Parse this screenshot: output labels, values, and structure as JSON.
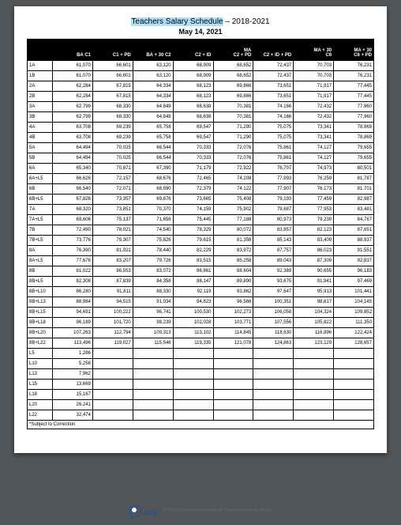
{
  "page_title_highlight": "Teachers Salary Schedule",
  "page_title_rest": " – 2018-2021",
  "effective_date": "May 14, 2021",
  "headers": [
    "",
    "BA C1",
    "C1 + PD",
    "BA + 30 C2",
    "C2 + ID",
    "MA\nC2 + PD",
    "C2 + ID + PD",
    "MA + 30\nC6",
    "MA + 30\nC6 + PD"
  ],
  "rows": [
    {
      "step": "1A",
      "v": [
        "61,070",
        "66,601",
        "63,120",
        "68,909",
        "68,652",
        "72,437",
        "70,703",
        "76,231"
      ]
    },
    {
      "step": "1B",
      "v": [
        "61,070",
        "66,601",
        "63,120",
        "68,909",
        "68,652",
        "72,437",
        "70,703",
        "76,231"
      ]
    },
    {
      "step": "2A",
      "v": [
        "62,284",
        "67,815",
        "64,334",
        "68,123",
        "69,866",
        "73,651",
        "71,917",
        "77,445"
      ]
    },
    {
      "step": "2B",
      "v": [
        "62,284",
        "67,815",
        "64,334",
        "68,123",
        "69,866",
        "73,651",
        "71,917",
        "77,445"
      ]
    },
    {
      "step": "3A",
      "v": [
        "62,799",
        "68,330",
        "64,849",
        "68,638",
        "70,381",
        "74,166",
        "72,432",
        "77,960"
      ]
    },
    {
      "step": "3B",
      "v": [
        "62,799",
        "68,330",
        "64,849",
        "68,638",
        "70,381",
        "74,166",
        "72,432",
        "77,960"
      ]
    },
    {
      "step": "4A",
      "v": [
        "63,708",
        "69,239",
        "65,758",
        "69,547",
        "71,290",
        "75,075",
        "73,341",
        "78,869"
      ]
    },
    {
      "step": "4B",
      "v": [
        "63,708",
        "69,239",
        "65,758",
        "69,547",
        "71,290",
        "75,075",
        "73,341",
        "78,869"
      ]
    },
    {
      "step": "5A",
      "v": [
        "64,494",
        "70,025",
        "66,544",
        "70,333",
        "72,076",
        "75,861",
        "74,127",
        "79,655"
      ]
    },
    {
      "step": "5B",
      "v": [
        "64,494",
        "70,025",
        "66,544",
        "70,333",
        "72,076",
        "75,861",
        "74,127",
        "79,655"
      ]
    },
    {
      "step": "6A",
      "v": [
        "65,340",
        "70,871",
        "67,390",
        "71,179",
        "72,922",
        "76,707",
        "74,973",
        "80,501"
      ]
    },
    {
      "step": "6A+L5",
      "v": [
        "66,626",
        "72,157",
        "68,676",
        "72,465",
        "74,208",
        "77,993",
        "76,259",
        "81,787"
      ]
    },
    {
      "step": "6B",
      "v": [
        "66,540",
        "72,071",
        "68,590",
        "72,379",
        "74,122",
        "77,907",
        "76,173",
        "81,701"
      ]
    },
    {
      "step": "6B+L5",
      "v": [
        "67,826",
        "73,357",
        "69,876",
        "73,665",
        "75,408",
        "79,193",
        "77,459",
        "82,987"
      ]
    },
    {
      "step": "7A",
      "v": [
        "68,320",
        "73,851",
        "70,370",
        "74,159",
        "75,902",
        "79,687",
        "77,953",
        "83,481"
      ]
    },
    {
      "step": "7A+L5",
      "v": [
        "69,606",
        "75,137",
        "71,656",
        "75,445",
        "77,188",
        "80,973",
        "79,239",
        "84,767"
      ]
    },
    {
      "step": "7B",
      "v": [
        "72,490",
        "78,021",
        "74,540",
        "78,329",
        "80,072",
        "83,857",
        "82,123",
        "87,651"
      ]
    },
    {
      "step": "7B+L5",
      "v": [
        "73,776",
        "79,307",
        "75,826",
        "79,615",
        "81,358",
        "85,143",
        "83,409",
        "88,937"
      ]
    },
    {
      "step": "8A",
      "v": [
        "76,390",
        "81,921",
        "78,440",
        "82,229",
        "83,972",
        "87,757",
        "86,023",
        "91,551"
      ]
    },
    {
      "step": "8A+L5",
      "v": [
        "77,676",
        "83,207",
        "79,726",
        "83,515",
        "85,258",
        "89,043",
        "87,309",
        "92,837"
      ]
    },
    {
      "step": "8B",
      "v": [
        "81,022",
        "86,553",
        "83,072",
        "86,861",
        "88,604",
        "92,389",
        "90,655",
        "96,183"
      ]
    },
    {
      "step": "8B+L5",
      "v": [
        "82,308",
        "87,839",
        "84,358",
        "88,147",
        "89,890",
        "93,675",
        "91,941",
        "97,469"
      ]
    },
    {
      "step": "8B+L10",
      "v": [
        "86,280",
        "91,811",
        "88,330",
        "92,119",
        "93,862",
        "97,647",
        "95,913",
        "101,441"
      ]
    },
    {
      "step": "8B+L13",
      "v": [
        "88,984",
        "94,515",
        "91,034",
        "94,823",
        "96,566",
        "100,351",
        "98,617",
        "104,145"
      ]
    },
    {
      "step": "8B+L15",
      "v": [
        "94,691",
        "100,222",
        "96,741",
        "100,530",
        "102,273",
        "106,058",
        "104,324",
        "109,852"
      ]
    },
    {
      "step": "8B+L18",
      "v": [
        "96,189",
        "101,720",
        "98,239",
        "102,028",
        "103,771",
        "107,556",
        "105,822",
        "111,350"
      ]
    },
    {
      "step": "8B+L20",
      "v": [
        "107,263",
        "112,794",
        "109,313",
        "113,102",
        "114,845",
        "118,630",
        "116,896",
        "122,424"
      ]
    },
    {
      "step": "8B+L22",
      "v": [
        "113,496",
        "119,027",
        "115,546",
        "119,335",
        "121,078",
        "124,863",
        "123,129",
        "128,657"
      ]
    },
    {
      "step": "L5",
      "v": [
        "1,286",
        "",
        "",
        "",
        "",
        "",
        "",
        ""
      ]
    },
    {
      "step": "L10",
      "v": [
        "5,258",
        "",
        "",
        "",
        "",
        "",
        "",
        ""
      ]
    },
    {
      "step": "L13",
      "v": [
        "7,962",
        "",
        "",
        "",
        "",
        "",
        "",
        ""
      ]
    },
    {
      "step": "L15",
      "v": [
        "13,669",
        "",
        "",
        "",
        "",
        "",
        "",
        ""
      ]
    },
    {
      "step": "L18",
      "v": [
        "15,167",
        "",
        "",
        "",
        "",
        "",
        "",
        ""
      ]
    },
    {
      "step": "L20",
      "v": [
        "26,241",
        "",
        "",
        "",
        "",
        "",
        "",
        ""
      ]
    },
    {
      "step": "L22",
      "v": [
        "32,474",
        "",
        "",
        "",
        "",
        "",
        "",
        ""
      ]
    }
  ],
  "footnote": "*Subject to Correction",
  "footer_logo_text": "UFT",
  "footer_copy": "© 2019 United Federation of Teachers • www.uft.org"
}
